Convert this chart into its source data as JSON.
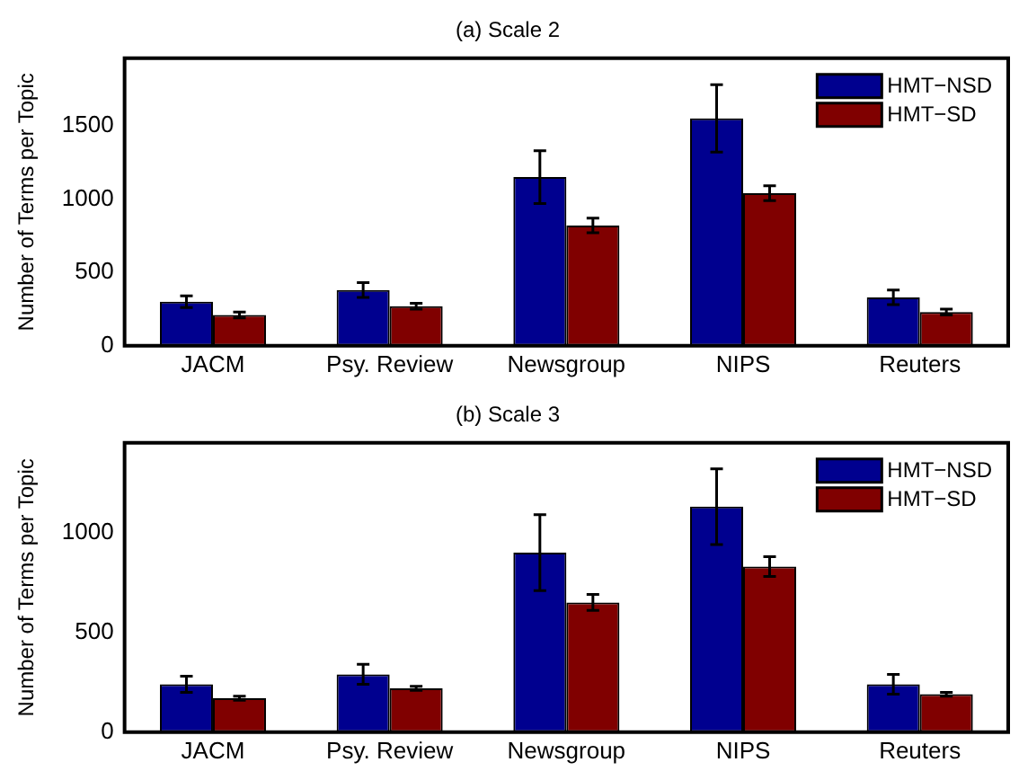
{
  "chart_data": [
    {
      "type": "bar",
      "title": "(a) Scale 2",
      "ylabel": "Number of Terms per Topic",
      "categories": [
        "JACM",
        "Psy. Review",
        "Newsgroup",
        "NIPS",
        "Reuters"
      ],
      "series": [
        {
          "name": "HMT−NSD",
          "color": "#00008f",
          "values": [
            300,
            380,
            1150,
            1550,
            330
          ],
          "errors": [
            40,
            50,
            180,
            230,
            50
          ]
        },
        {
          "name": "HMT−SD",
          "color": "#800000",
          "values": [
            210,
            270,
            820,
            1040,
            230
          ],
          "errors": [
            20,
            20,
            50,
            50,
            20
          ]
        }
      ],
      "ylim": [
        0,
        1960
      ],
      "yticks": [
        0,
        500,
        1000,
        1500
      ],
      "legend": "top right",
      "grid": false
    },
    {
      "type": "bar",
      "title": "(b) Scale 3",
      "ylabel": "Number of Terms per Topic",
      "categories": [
        "JACM",
        "Psy. Review",
        "Newsgroup",
        "NIPS",
        "Reuters"
      ],
      "series": [
        {
          "name": "HMT−NSD",
          "color": "#00008f",
          "values": [
            240,
            290,
            900,
            1130,
            240
          ],
          "errors": [
            40,
            50,
            190,
            190,
            50
          ]
        },
        {
          "name": "HMT−SD",
          "color": "#800000",
          "values": [
            170,
            220,
            650,
            830,
            190
          ],
          "errors": [
            10,
            10,
            40,
            50,
            10
          ]
        }
      ],
      "ylim": [
        0,
        1450
      ],
      "yticks": [
        0,
        500,
        1000
      ],
      "legend": "top right",
      "grid": false
    }
  ]
}
